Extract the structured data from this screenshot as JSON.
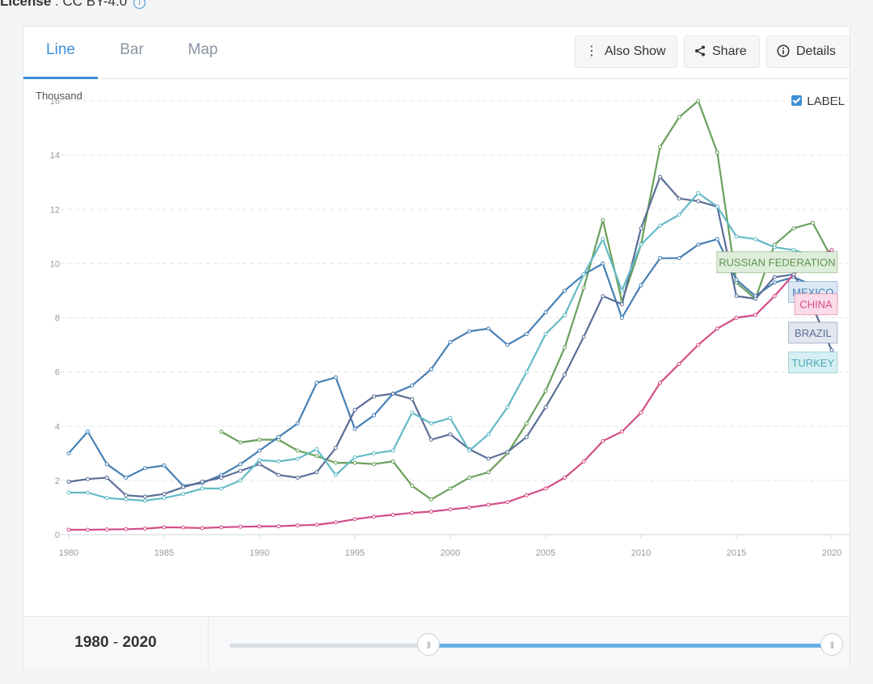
{
  "license": {
    "label": "License",
    "value": " : CC BY-4.0"
  },
  "tabs": [
    {
      "label": "Line",
      "active": true
    },
    {
      "label": "Bar",
      "active": false
    },
    {
      "label": "Map",
      "active": false
    }
  ],
  "toolbar": {
    "also_show": "Also Show",
    "share": "Share",
    "details": "Details"
  },
  "label_toggle": {
    "label": "LABEL",
    "checked": true
  },
  "unit": "Thousand",
  "footer": {
    "range_start": "1980",
    "range_sep": " - ",
    "range_end": "2020"
  },
  "slider": {
    "min": 1980,
    "max": 2020,
    "start_fraction": 0.33,
    "end_fraction": 1.0
  },
  "chart_data": {
    "type": "line",
    "xlim": [
      1980,
      2020
    ],
    "ylim": [
      0,
      16
    ],
    "xticks": [
      1980,
      1985,
      1990,
      1995,
      2000,
      2005,
      2010,
      2015,
      2020
    ],
    "yticks": [
      0,
      2,
      4,
      6,
      8,
      10,
      12,
      14,
      16
    ],
    "grid": true,
    "series": [
      {
        "name": "RUSSIAN FEDERATION",
        "color": "#6aa05c",
        "x": [
          1988,
          1989,
          1990,
          1991,
          1992,
          1993,
          1994,
          1995,
          1996,
          1997,
          1998,
          1999,
          2000,
          2001,
          2002,
          2003,
          2004,
          2005,
          2006,
          2007,
          2008,
          2009,
          2010,
          2011,
          2012,
          2013,
          2014,
          2015,
          2016,
          2017,
          2018,
          2019,
          2020
        ],
        "y": [
          3.8,
          3.4,
          3.5,
          3.5,
          3.1,
          2.9,
          2.65,
          2.65,
          2.6,
          2.7,
          1.8,
          1.3,
          1.7,
          2.1,
          2.3,
          3.0,
          4.1,
          5.3,
          6.9,
          9.1,
          11.6,
          8.6,
          10.7,
          14.3,
          15.4,
          16.0,
          14.1,
          9.3,
          8.7,
          10.7,
          11.3,
          11.5,
          10.2
        ]
      },
      {
        "name": "MEXICO",
        "color": "#4580b5",
        "x": [
          1980,
          1981,
          1982,
          1983,
          1984,
          1985,
          1986,
          1987,
          1988,
          1989,
          1990,
          1991,
          1992,
          1993,
          1994,
          1995,
          1996,
          1997,
          1998,
          1999,
          2000,
          2001,
          2002,
          2003,
          2004,
          2005,
          2006,
          2007,
          2008,
          2009,
          2010,
          2011,
          2012,
          2013,
          2014,
          2015,
          2016,
          2017,
          2018,
          2019,
          2020
        ],
        "y": [
          3.0,
          3.8,
          2.6,
          2.1,
          2.45,
          2.55,
          1.8,
          1.9,
          2.2,
          2.6,
          3.1,
          3.6,
          4.1,
          5.6,
          5.8,
          3.9,
          4.4,
          5.2,
          5.5,
          6.1,
          7.1,
          7.5,
          7.6,
          7.0,
          7.4,
          8.2,
          9.0,
          9.6,
          10.0,
          8.0,
          9.2,
          10.2,
          10.2,
          10.7,
          10.9,
          9.4,
          8.8,
          9.3,
          9.5,
          9.2,
          8.4
        ]
      },
      {
        "name": "CHINA",
        "color": "#d24d87",
        "x": [
          1980,
          1981,
          1982,
          1983,
          1984,
          1985,
          1986,
          1987,
          1988,
          1989,
          1990,
          1991,
          1992,
          1993,
          1994,
          1995,
          1996,
          1997,
          1998,
          1999,
          2000,
          2001,
          2002,
          2003,
          2004,
          2005,
          2006,
          2007,
          2008,
          2009,
          2010,
          2011,
          2012,
          2013,
          2014,
          2015,
          2016,
          2017,
          2018,
          2019,
          2020
        ],
        "y": [
          0.18,
          0.18,
          0.19,
          0.2,
          0.22,
          0.27,
          0.26,
          0.24,
          0.27,
          0.29,
          0.3,
          0.31,
          0.34,
          0.36,
          0.45,
          0.57,
          0.66,
          0.73,
          0.8,
          0.85,
          0.93,
          1.0,
          1.1,
          1.2,
          1.45,
          1.7,
          2.1,
          2.7,
          3.45,
          3.8,
          4.5,
          5.6,
          6.3,
          7.0,
          7.6,
          8.0,
          8.1,
          8.8,
          9.6,
          10.2,
          10.5
        ]
      },
      {
        "name": "BRAZIL",
        "color": "#5a6e98",
        "x": [
          1980,
          1981,
          1982,
          1983,
          1984,
          1985,
          1986,
          1987,
          1988,
          1989,
          1990,
          1991,
          1992,
          1993,
          1994,
          1995,
          1996,
          1997,
          1998,
          1999,
          2000,
          2001,
          2002,
          2003,
          2004,
          2005,
          2006,
          2007,
          2008,
          2009,
          2010,
          2011,
          2012,
          2013,
          2014,
          2015,
          2016,
          2017,
          2018,
          2019,
          2020
        ],
        "y": [
          1.95,
          2.05,
          2.1,
          1.45,
          1.4,
          1.5,
          1.75,
          1.95,
          2.1,
          2.35,
          2.6,
          2.2,
          2.1,
          2.3,
          3.2,
          4.6,
          5.1,
          5.2,
          5.0,
          3.5,
          3.7,
          3.15,
          2.8,
          3.05,
          3.6,
          4.7,
          5.9,
          7.3,
          8.8,
          8.5,
          11.3,
          13.2,
          12.4,
          12.3,
          12.1,
          8.8,
          8.7,
          9.5,
          9.6,
          8.4,
          6.8
        ]
      },
      {
        "name": "TURKEY",
        "color": "#63bac6",
        "x": [
          1980,
          1981,
          1982,
          1983,
          1984,
          1985,
          1986,
          1987,
          1988,
          1989,
          1990,
          1991,
          1992,
          1993,
          1994,
          1995,
          1996,
          1997,
          1998,
          1999,
          2000,
          2001,
          2002,
          2003,
          2004,
          2005,
          2006,
          2007,
          2008,
          2009,
          2010,
          2011,
          2012,
          2013,
          2014,
          2015,
          2016,
          2017,
          2018,
          2019,
          2020
        ],
        "y": [
          1.55,
          1.55,
          1.35,
          1.3,
          1.25,
          1.35,
          1.5,
          1.7,
          1.7,
          2.0,
          2.75,
          2.7,
          2.8,
          3.15,
          2.2,
          2.85,
          3.0,
          3.1,
          4.5,
          4.1,
          4.3,
          3.1,
          3.7,
          4.7,
          6.0,
          7.4,
          8.1,
          9.6,
          10.9,
          9.0,
          10.7,
          11.4,
          11.8,
          12.6,
          12.1,
          11.0,
          10.9,
          10.6,
          10.5,
          10.3,
          10.0
        ]
      }
    ],
    "labels": [
      {
        "series": 0,
        "text": "RUSSIAN FEDERATION",
        "y": 10.05,
        "bg": "#dfeedb",
        "fg": "#5f9252"
      },
      {
        "series": 1,
        "text": "MEXICO",
        "y": 8.95,
        "bg": "#dce8f4",
        "fg": "#4580b5"
      },
      {
        "series": 2,
        "text": "CHINA",
        "y": 8.5,
        "bg": "#fbdce8",
        "fg": "#d24d87"
      },
      {
        "series": 3,
        "text": "BRAZIL",
        "y": 7.45,
        "bg": "#e2e6ef",
        "fg": "#5a6e98"
      },
      {
        "series": 4,
        "text": "TURKEY",
        "y": 6.35,
        "bg": "#d6eff2",
        "fg": "#4aa9b6"
      }
    ]
  }
}
